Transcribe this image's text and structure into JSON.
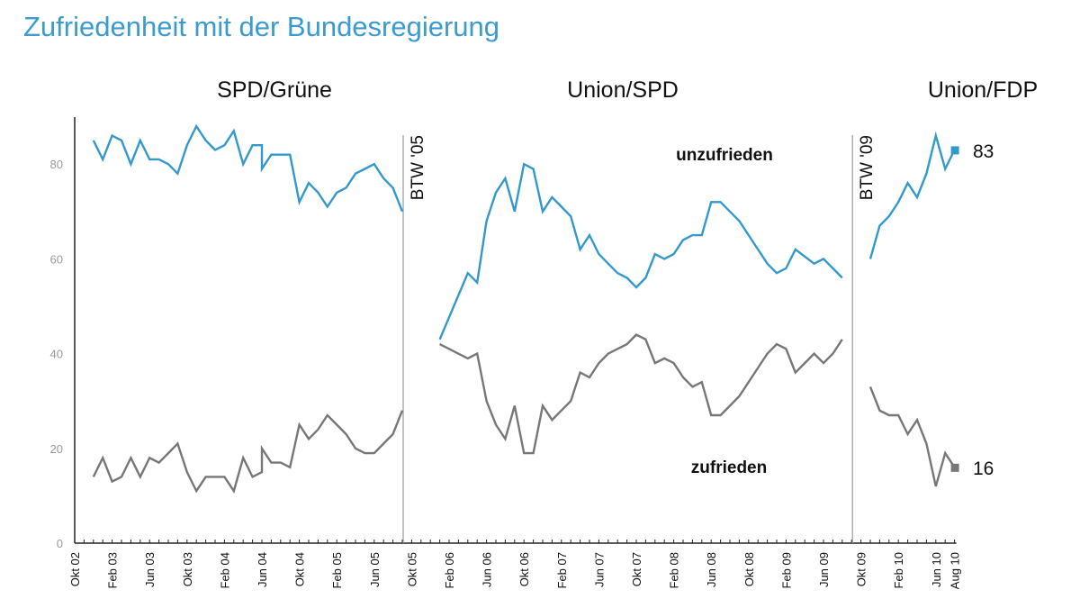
{
  "chart_data": {
    "type": "line",
    "title": "Zufriedenheit mit der Bundesregierung",
    "xlabel": "",
    "ylabel": "",
    "ylim": [
      0,
      88
    ],
    "xlim": [
      "2002-10",
      "2010-08"
    ],
    "yticks": [
      0,
      20,
      40,
      60,
      80
    ],
    "xticks": [
      "Okt 02",
      "Feb 03",
      "Jun 03",
      "Okt 03",
      "Feb 04",
      "Jun 04",
      "Okt 04",
      "Feb 05",
      "Jun 05",
      "Okt 05",
      "Feb 06",
      "Jun 06",
      "Okt 06",
      "Feb 07",
      "Jun 07",
      "Okt 07",
      "Feb 08",
      "Jun 08",
      "Okt 08",
      "Feb 09",
      "Jun 09",
      "Okt 09",
      "Feb 10",
      "Jun 10",
      "Aug 10"
    ],
    "grid": false,
    "periods": [
      {
        "label": "SPD/Grüne"
      },
      {
        "label": "Union/SPD"
      },
      {
        "label": "Union/FDP"
      }
    ],
    "markers": [
      {
        "label": "BTW '05",
        "x": "2005-09"
      },
      {
        "label": "BTW '09",
        "x": "2009-09"
      }
    ],
    "series": [
      {
        "name": "unzufrieden",
        "color": "#3399cc",
        "end_value": "83",
        "segments": [
          {
            "x": [
              "2002-12",
              "2003-01",
              "2003-02",
              "2003-03",
              "2003-04",
              "2003-05",
              "2003-06",
              "2003-07",
              "2003-08",
              "2003-09",
              "2003-10",
              "2003-11",
              "2003-12",
              "2004-01",
              "2004-02",
              "2004-03",
              "2004-04",
              "2004-05",
              "2004-06",
              "2004-06",
              "2004-07",
              "2004-08",
              "2004-09",
              "2004-10",
              "2004-11",
              "2004-12",
              "2005-01",
              "2005-02",
              "2005-03",
              "2005-04",
              "2005-05",
              "2005-06",
              "2005-07",
              "2005-08",
              "2005-09"
            ],
            "y": [
              85,
              81,
              86,
              85,
              80,
              85,
              81,
              81,
              80,
              78,
              84,
              88,
              85,
              83,
              84,
              87,
              80,
              84,
              84,
              79,
              82,
              82,
              82,
              72,
              76,
              74,
              71,
              74,
              75,
              78,
              79,
              80,
              77,
              75,
              70
            ]
          },
          {
            "x": [
              "2006-01",
              "2006-04",
              "2006-05",
              "2006-06",
              "2006-07",
              "2006-08",
              "2006-09",
              "2006-10",
              "2006-11",
              "2006-12",
              "2007-01",
              "2007-02",
              "2007-03",
              "2007-04",
              "2007-05",
              "2007-06",
              "2007-07",
              "2007-08",
              "2007-09",
              "2007-10",
              "2007-11",
              "2007-12",
              "2008-01",
              "2008-02",
              "2008-03",
              "2008-04",
              "2008-05",
              "2008-06",
              "2008-07",
              "2008-08",
              "2008-09",
              "2008-10",
              "2008-11",
              "2008-12",
              "2009-01",
              "2009-02",
              "2009-03",
              "2009-05",
              "2009-06",
              "2009-07",
              "2009-08"
            ],
            "y": [
              43,
              57,
              55,
              68,
              74,
              77,
              70,
              80,
              79,
              70,
              73,
              71,
              69,
              62,
              65,
              61,
              59,
              57,
              56,
              54,
              56,
              61,
              60,
              61,
              64,
              65,
              65,
              72,
              72,
              70,
              68,
              65,
              62,
              59,
              57,
              58,
              62,
              59,
              60,
              58,
              56
            ]
          },
          {
            "x": [
              "2009-11",
              "2009-12",
              "2010-01",
              "2010-02",
              "2010-03",
              "2010-04",
              "2010-05",
              "2010-06",
              "2010-07",
              "2010-08"
            ],
            "y": [
              60,
              67,
              69,
              72,
              76,
              73,
              78,
              86,
              79,
              83
            ]
          }
        ]
      },
      {
        "name": "zufrieden",
        "color": "#777777",
        "end_value": "16",
        "segments": [
          {
            "x": [
              "2002-12",
              "2003-01",
              "2003-02",
              "2003-03",
              "2003-04",
              "2003-05",
              "2003-06",
              "2003-07",
              "2003-08",
              "2003-09",
              "2003-10",
              "2003-11",
              "2003-12",
              "2004-01",
              "2004-02",
              "2004-03",
              "2004-04",
              "2004-05",
              "2004-06",
              "2004-06",
              "2004-07",
              "2004-08",
              "2004-09",
              "2004-10",
              "2004-11",
              "2004-12",
              "2005-01",
              "2005-02",
              "2005-03",
              "2005-04",
              "2005-05",
              "2005-06",
              "2005-07",
              "2005-08",
              "2005-09"
            ],
            "y": [
              14,
              18,
              13,
              14,
              18,
              14,
              18,
              17,
              19,
              21,
              15,
              11,
              14,
              14,
              14,
              11,
              18,
              14,
              15,
              20,
              17,
              17,
              16,
              25,
              22,
              24,
              27,
              25,
              23,
              20,
              19,
              19,
              21,
              23,
              28
            ]
          },
          {
            "x": [
              "2006-01",
              "2006-04",
              "2006-05",
              "2006-06",
              "2006-07",
              "2006-08",
              "2006-09",
              "2006-10",
              "2006-11",
              "2006-12",
              "2007-01",
              "2007-02",
              "2007-03",
              "2007-04",
              "2007-05",
              "2007-06",
              "2007-07",
              "2007-08",
              "2007-09",
              "2007-10",
              "2007-11",
              "2007-12",
              "2008-01",
              "2008-02",
              "2008-03",
              "2008-04",
              "2008-05",
              "2008-06",
              "2008-07",
              "2008-08",
              "2008-09",
              "2008-10",
              "2008-11",
              "2008-12",
              "2009-01",
              "2009-02",
              "2009-03",
              "2009-04",
              "2009-05",
              "2009-06",
              "2009-07",
              "2009-08"
            ],
            "y": [
              42,
              39,
              40,
              30,
              25,
              22,
              29,
              19,
              19,
              29,
              26,
              28,
              30,
              36,
              35,
              38,
              40,
              41,
              42,
              44,
              43,
              38,
              39,
              38,
              35,
              33,
              34,
              27,
              27,
              29,
              31,
              34,
              37,
              40,
              42,
              41,
              36,
              38,
              40,
              38,
              40,
              43
            ]
          },
          {
            "x": [
              "2009-11",
              "2009-12",
              "2010-01",
              "2010-02",
              "2010-03",
              "2010-04",
              "2010-05",
              "2010-06",
              "2010-07",
              "2010-08"
            ],
            "y": [
              33,
              28,
              27,
              27,
              23,
              26,
              21,
              12,
              19,
              16
            ]
          }
        ]
      }
    ]
  }
}
